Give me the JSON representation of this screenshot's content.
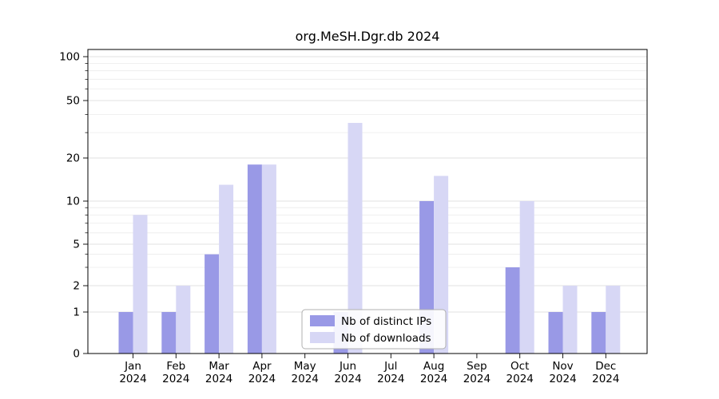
{
  "chart_data": {
    "type": "bar",
    "title": "org.MeSH.Dgr.db 2024",
    "categories": [
      "Jan 2024",
      "Feb 2024",
      "Mar 2024",
      "Apr 2024",
      "May 2024",
      "Jun 2024",
      "Jul 2024",
      "Aug 2024",
      "Sep 2024",
      "Oct 2024",
      "Nov 2024",
      "Dec 2024"
    ],
    "series": [
      {
        "name": "Nb of distinct IPs",
        "color": "#9999e6",
        "values": [
          1,
          1,
          4,
          18,
          0,
          1,
          0,
          10,
          0,
          3,
          1,
          1
        ]
      },
      {
        "name": "Nb of downloads",
        "color": "#d7d7f5",
        "values": [
          8,
          2,
          13,
          18,
          0,
          35,
          0,
          15,
          0,
          10,
          2,
          2
        ]
      }
    ],
    "yticks": [
      0,
      1,
      2,
      5,
      10,
      20,
      50,
      100
    ],
    "minor_gridlines": [
      3,
      4,
      6,
      7,
      8,
      9,
      30,
      40,
      60,
      70,
      80,
      90
    ],
    "ylim": [
      0,
      100
    ],
    "yscale": "symlog",
    "grid": true,
    "legend": {
      "position": "lower center"
    },
    "colors": {
      "grid_major": "#d9d9d9",
      "grid_minor": "#ebebeb",
      "spine": "#000000",
      "legend_border": "#b0b0b0"
    }
  }
}
